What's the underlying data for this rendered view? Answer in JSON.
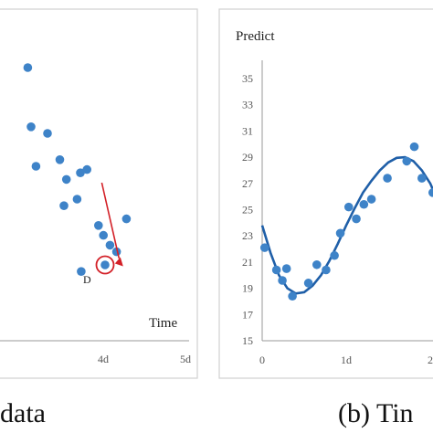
{
  "captions": {
    "left": "data",
    "right": "(b) Tin"
  },
  "chart_data": [
    {
      "type": "scatter",
      "title": "",
      "xlabel": "Time",
      "ylabel": "",
      "x_tick_labels": [
        "4d",
        "5d"
      ],
      "series": [
        {
          "points": [
            {
              "x": 3.06,
              "y": 9.0
            },
            {
              "x": 3.1,
              "y": 8.1
            },
            {
              "x": 3.16,
              "y": 7.5
            },
            {
              "x": 3.3,
              "y": 8.0
            },
            {
              "x": 3.45,
              "y": 7.6
            },
            {
              "x": 3.53,
              "y": 7.3
            },
            {
              "x": 3.7,
              "y": 7.4
            },
            {
              "x": 3.78,
              "y": 7.45
            },
            {
              "x": 3.5,
              "y": 6.9
            },
            {
              "x": 3.66,
              "y": 7.0
            },
            {
              "x": 3.92,
              "y": 6.6
            },
            {
              "x": 3.98,
              "y": 6.45
            },
            {
              "x": 4.06,
              "y": 6.3
            },
            {
              "x": 4.14,
              "y": 6.2
            },
            {
              "x": 4.26,
              "y": 6.7
            },
            {
              "x": 3.71,
              "y": 5.9
            }
          ]
        }
      ],
      "highlight": {
        "label": "D",
        "point": {
          "x": 4.0,
          "y": 6.0
        },
        "color": "#d32027"
      },
      "arrow_color": "#d32027",
      "marker_color": "#3e83c8",
      "grid": false
    },
    {
      "type": "scatter",
      "title": "",
      "xlabel": "",
      "ylabel": "Predict",
      "ylim": [
        15,
        35
      ],
      "yticks": [
        15,
        17,
        19,
        21,
        23,
        25,
        27,
        29,
        31,
        33,
        35
      ],
      "x_tick_labels": [
        "0",
        "1d",
        "2"
      ],
      "series": [
        {
          "points": [
            {
              "x": 0.03,
              "y": 22.1
            },
            {
              "x": 0.17,
              "y": 20.4
            },
            {
              "x": 0.24,
              "y": 19.6
            },
            {
              "x": 0.29,
              "y": 20.5
            },
            {
              "x": 0.36,
              "y": 18.4
            },
            {
              "x": 0.55,
              "y": 19.4
            },
            {
              "x": 0.65,
              "y": 20.8
            },
            {
              "x": 0.76,
              "y": 20.4
            },
            {
              "x": 0.86,
              "y": 21.5
            },
            {
              "x": 0.93,
              "y": 23.2
            },
            {
              "x": 1.03,
              "y": 25.2
            },
            {
              "x": 1.12,
              "y": 24.3
            },
            {
              "x": 1.21,
              "y": 25.4
            },
            {
              "x": 1.3,
              "y": 25.8
            },
            {
              "x": 1.49,
              "y": 27.4
            },
            {
              "x": 1.72,
              "y": 28.7
            },
            {
              "x": 1.81,
              "y": 29.8
            },
            {
              "x": 1.9,
              "y": 27.4
            },
            {
              "x": 2.03,
              "y": 26.3
            }
          ]
        },
        {
          "type": "line",
          "points": [
            {
              "x": 0.0,
              "y": 23.8
            },
            {
              "x": 0.1,
              "y": 21.7
            },
            {
              "x": 0.2,
              "y": 20.0
            },
            {
              "x": 0.3,
              "y": 19.0
            },
            {
              "x": 0.4,
              "y": 18.6
            },
            {
              "x": 0.5,
              "y": 18.7
            },
            {
              "x": 0.6,
              "y": 19.2
            },
            {
              "x": 0.7,
              "y": 20.0
            },
            {
              "x": 0.8,
              "y": 21.1
            },
            {
              "x": 0.9,
              "y": 22.4
            },
            {
              "x": 1.0,
              "y": 23.8
            },
            {
              "x": 1.1,
              "y": 25.1
            },
            {
              "x": 1.2,
              "y": 26.3
            },
            {
              "x": 1.3,
              "y": 27.2
            },
            {
              "x": 1.4,
              "y": 28.0
            },
            {
              "x": 1.5,
              "y": 28.6
            },
            {
              "x": 1.6,
              "y": 28.95
            },
            {
              "x": 1.7,
              "y": 29.0
            },
            {
              "x": 1.8,
              "y": 28.7
            },
            {
              "x": 1.9,
              "y": 28.0
            },
            {
              "x": 2.0,
              "y": 27.0
            },
            {
              "x": 2.06,
              "y": 26.1
            }
          ]
        }
      ],
      "marker_color": "#3e83c8",
      "line_color": "#1f5fa8",
      "grid": false
    }
  ]
}
